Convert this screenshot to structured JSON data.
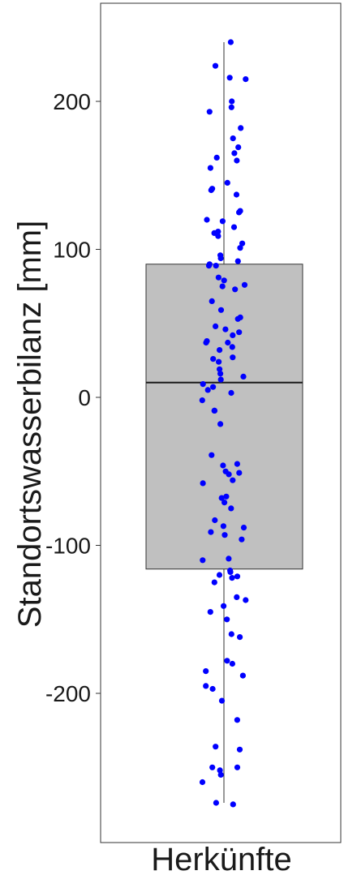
{
  "chart_data": {
    "type": "boxplot",
    "xlabel": "Herkünfte",
    "ylabel": "Standortswasserbilanz [mm]",
    "y_ticks": [
      200,
      100,
      0,
      -100,
      -200
    ],
    "y_tick_labels": [
      "200",
      "100",
      "0",
      "-100",
      "-200"
    ],
    "ylim": [
      -300,
      268
    ],
    "grid": false,
    "box": {
      "q1": -116,
      "median": 10,
      "q3": 90,
      "whisker_low": -274,
      "whisker_high": 240
    },
    "points": [
      240,
      224,
      216,
      215,
      200,
      196,
      193,
      182,
      175,
      169,
      165,
      162,
      160,
      155,
      145,
      141,
      140,
      137,
      126,
      125,
      120,
      119,
      115,
      112,
      111,
      109,
      104,
      101,
      96,
      94,
      92,
      90,
      89,
      89,
      81,
      79,
      76,
      75,
      73,
      65,
      59,
      54,
      53,
      48,
      46,
      44,
      42,
      38,
      37,
      37,
      34,
      32,
      27,
      26,
      24,
      19,
      16,
      14,
      12,
      9,
      7,
      5,
      3,
      -2,
      -9,
      -9,
      -18,
      -39,
      -45,
      -46,
      -50,
      -51,
      -52,
      -56,
      -58,
      -67,
      -68,
      -71,
      -75,
      -83,
      -87,
      -88,
      -91,
      -93,
      -96,
      -109,
      -110,
      -117,
      -118,
      -120,
      -121,
      -122,
      -125,
      -135,
      -137,
      -141,
      -145,
      -150,
      -160,
      -162,
      -178,
      -180,
      -185,
      -188,
      -195,
      -197,
      -205,
      -218,
      -236,
      -238,
      -250,
      -250,
      -252,
      -255,
      -260,
      -274,
      -275
    ],
    "colors": {
      "point": "#0000ff",
      "box_fill": "#c0c0c0",
      "box_stroke": "#333333",
      "median": "#1a1a1a",
      "whisker": "#333333",
      "frame": "#333333"
    }
  }
}
